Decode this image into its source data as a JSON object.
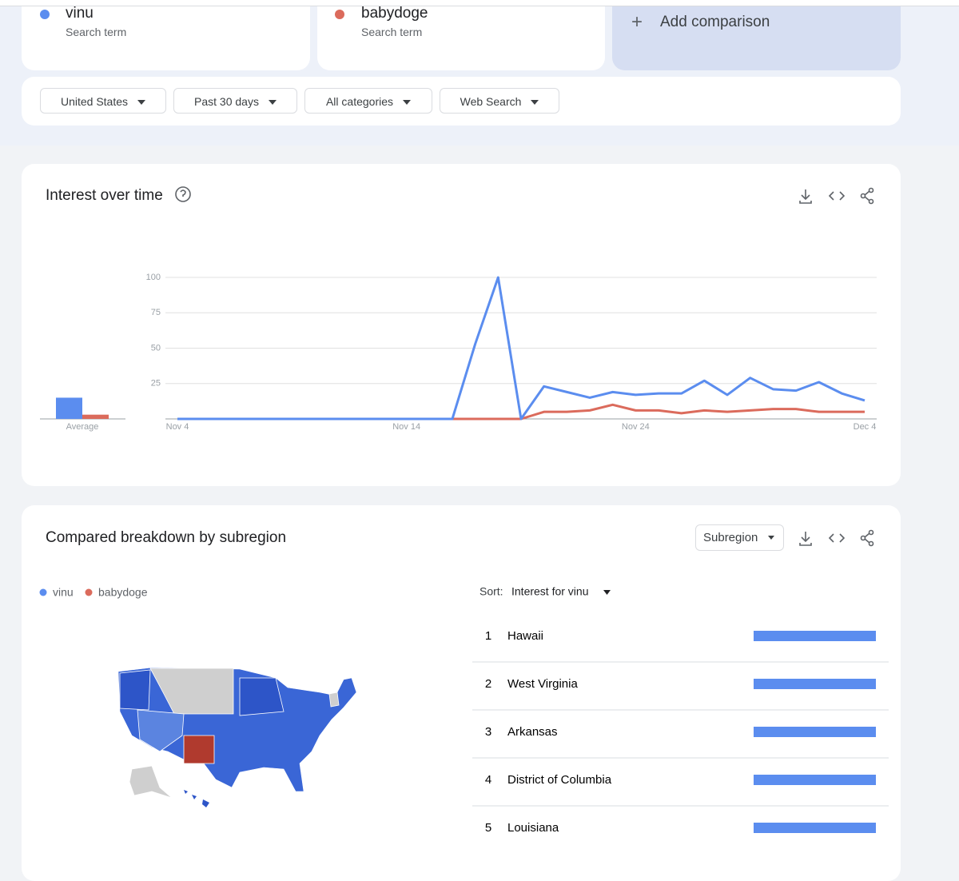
{
  "search_term_label": "Search term",
  "add_comparison": "Add comparison",
  "filters": [
    "United States",
    "Past 30 days",
    "All categories",
    "Web Search"
  ],
  "chart_data": {
    "type": "line",
    "title": "Interest over time",
    "categories": [
      "Nov 4",
      null,
      null,
      null,
      null,
      null,
      null,
      null,
      null,
      null,
      "Nov 14",
      null,
      null,
      null,
      null,
      null,
      null,
      null,
      null,
      null,
      "Nov 24",
      null,
      null,
      null,
      null,
      null,
      null,
      null,
      null,
      null,
      "Dec 4"
    ],
    "series": [
      {
        "name": "vinu",
        "color": "#5b8def",
        "values": [
          0,
          0,
          0,
          0,
          0,
          0,
          0,
          0,
          0,
          0,
          0,
          0,
          0,
          53,
          100,
          0,
          23,
          19,
          15,
          19,
          17,
          18,
          18,
          27,
          17,
          29,
          21,
          20,
          26,
          18,
          13
        ],
        "average": 15
      },
      {
        "name": "babydoge",
        "color": "#db6b5c",
        "values": [
          0,
          0,
          0,
          0,
          0,
          0,
          0,
          0,
          0,
          0,
          0,
          0,
          0,
          0,
          0,
          0,
          5,
          5,
          6,
          10,
          6,
          6,
          4,
          6,
          5,
          6,
          7,
          7,
          5,
          5,
          5
        ],
        "average": 3
      }
    ],
    "average_label": "Average",
    "ylim": [
      0,
      100
    ],
    "yticks": [
      25,
      50,
      75,
      100
    ],
    "grid": true
  },
  "subregion": {
    "title": "Compared breakdown by subregion",
    "resolution": "Subregion",
    "sort_label": "Sort:",
    "sort_by": "Interest for vinu",
    "rows": [
      {
        "rank": 1,
        "name": "Hawaii",
        "value": 100
      },
      {
        "rank": 2,
        "name": "West Virginia",
        "value": 100
      },
      {
        "rank": 3,
        "name": "Arkansas",
        "value": 100
      },
      {
        "rank": 4,
        "name": "District of Columbia",
        "value": 100
      },
      {
        "rank": 5,
        "name": "Louisiana",
        "value": 100
      }
    ]
  }
}
